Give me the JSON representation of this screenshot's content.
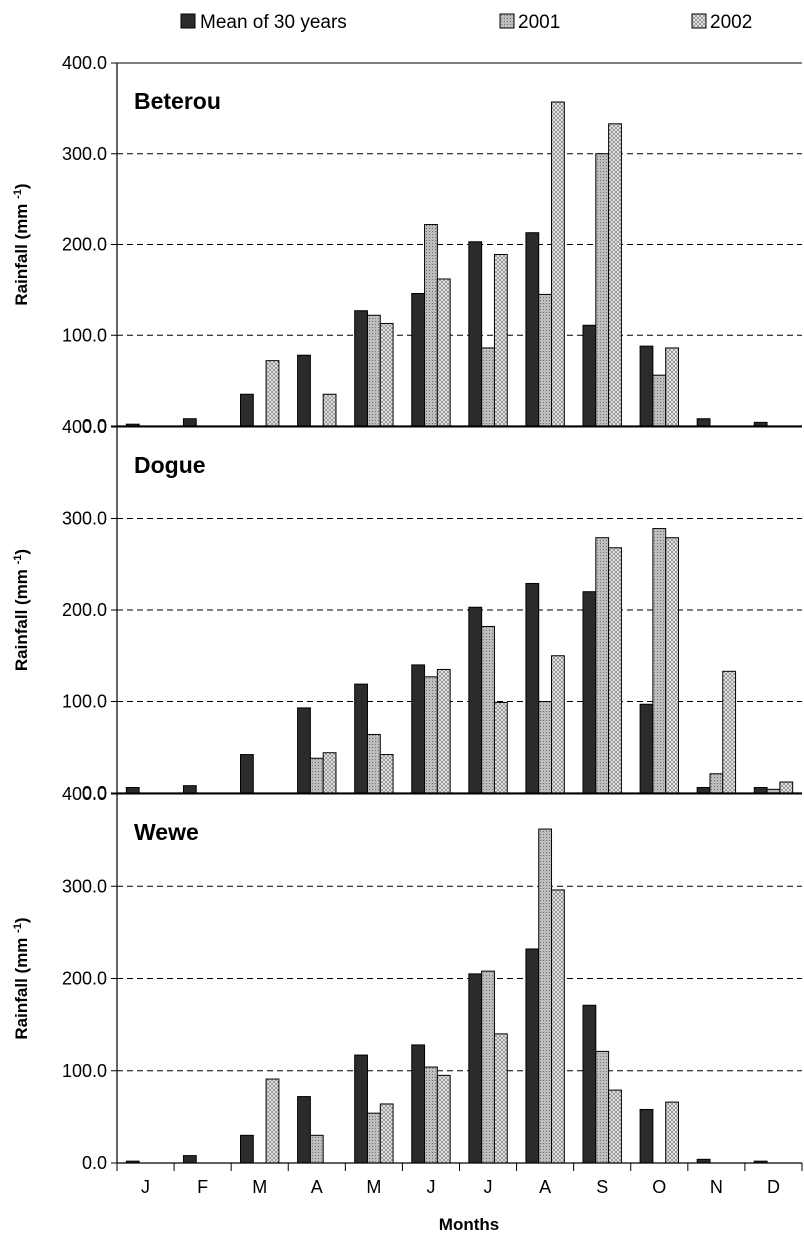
{
  "chart_data": {
    "type": "bar",
    "xlabel": "Months",
    "ylabel": "Rainfall (mm",
    "ylabel_sup": "-1",
    "ylabel_close": ")",
    "ylim": [
      0,
      400
    ],
    "yticks": [
      0,
      100,
      200,
      300,
      400
    ],
    "ytick_labels": [
      "0.0",
      "100.0",
      "200.0",
      "300.0",
      "400.0"
    ],
    "grid": "horizontal dashed",
    "legend": "top",
    "categories": [
      "J",
      "F",
      "M",
      "A",
      "M",
      "J",
      "J",
      "A",
      "S",
      "O",
      "N",
      "D"
    ],
    "series_names": [
      "Mean of 30 years",
      "2001",
      "2002"
    ],
    "series_colors": [
      "#2b2b2b",
      "#a6a6a6",
      "#d9d9d9"
    ],
    "panels": [
      {
        "title": "Beterou",
        "series": [
          {
            "name": "Mean of 30 years",
            "values": [
              2,
              8,
              35,
              78,
              127,
              146,
              203,
              213,
              111,
              88,
              8,
              4
            ]
          },
          {
            "name": "2001",
            "values": [
              0,
              0,
              0,
              0,
              122,
              222,
              86,
              145,
              300,
              56,
              0,
              0
            ]
          },
          {
            "name": "2002",
            "values": [
              0,
              0,
              72,
              35,
              113,
              162,
              189,
              357,
              333,
              86,
              0,
              0
            ]
          }
        ]
      },
      {
        "title": "Dogue",
        "series": [
          {
            "name": "Mean of 30 years",
            "values": [
              6,
              8,
              42,
              93,
              119,
              140,
              203,
              229,
              220,
              97,
              6,
              6
            ]
          },
          {
            "name": "2001",
            "values": [
              0,
              0,
              0,
              38,
              64,
              127,
              182,
              100,
              279,
              289,
              21,
              4
            ]
          },
          {
            "name": "2002",
            "values": [
              0,
              0,
              0,
              44,
              42,
              135,
              99,
              150,
              268,
              279,
              133,
              12
            ]
          }
        ]
      },
      {
        "title": "Wewe",
        "series": [
          {
            "name": "Mean of 30 years",
            "values": [
              2,
              8,
              30,
              72,
              117,
              128,
              205,
              232,
              171,
              58,
              4,
              2
            ]
          },
          {
            "name": "2001",
            "values": [
              0,
              0,
              0,
              30,
              54,
              104,
              208,
              362,
              121,
              0,
              0,
              0
            ]
          },
          {
            "name": "2002",
            "values": [
              0,
              0,
              91,
              0,
              64,
              95,
              140,
              296,
              79,
              66,
              0,
              0
            ]
          }
        ]
      }
    ]
  }
}
